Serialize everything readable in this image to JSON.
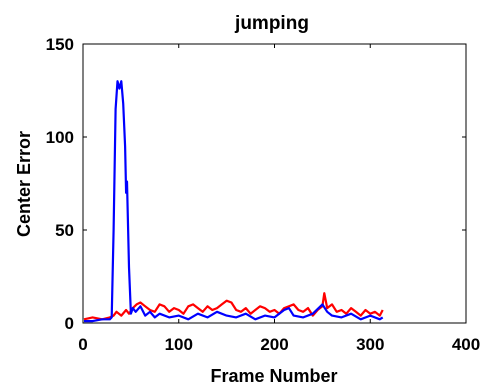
{
  "chart_data": {
    "type": "line",
    "title": "jumping",
    "xlabel": "Frame Number",
    "ylabel": "Center Error",
    "xlim": [
      0,
      400
    ],
    "ylim": [
      0,
      150
    ],
    "xticks": [
      0,
      100,
      200,
      300,
      400
    ],
    "yticks": [
      0,
      50,
      100,
      150
    ],
    "grid": false,
    "series": [
      {
        "color": "#ff0000",
        "x": [
          1,
          10,
          20,
          28,
          32,
          35,
          40,
          45,
          48,
          52,
          56,
          60,
          65,
          70,
          75,
          80,
          85,
          90,
          95,
          100,
          105,
          110,
          115,
          120,
          125,
          130,
          135,
          140,
          145,
          150,
          155,
          160,
          165,
          170,
          175,
          180,
          185,
          190,
          195,
          200,
          205,
          210,
          215,
          220,
          225,
          230,
          235,
          240,
          245,
          250,
          252,
          255,
          260,
          265,
          270,
          275,
          280,
          285,
          290,
          295,
          300,
          305,
          310,
          313
        ],
        "y": [
          2,
          3,
          2,
          3,
          4,
          6,
          4,
          7,
          5,
          8,
          10,
          11,
          9,
          7,
          6,
          10,
          9,
          6,
          8,
          7,
          5,
          9,
          10,
          8,
          6,
          9,
          7,
          8,
          10,
          12,
          11,
          7,
          6,
          8,
          5,
          7,
          9,
          8,
          6,
          7,
          5,
          8,
          9,
          10,
          7,
          6,
          8,
          4,
          7,
          9,
          16,
          8,
          10,
          6,
          7,
          5,
          8,
          6,
          4,
          7,
          5,
          6,
          4,
          7
        ]
      },
      {
        "color": "#0000ff",
        "x": [
          1,
          10,
          20,
          28,
          30,
          32,
          34,
          36,
          38,
          40,
          42,
          44,
          45,
          46,
          48,
          50,
          52,
          55,
          60,
          65,
          70,
          75,
          80,
          90,
          100,
          110,
          120,
          130,
          140,
          150,
          160,
          170,
          180,
          190,
          200,
          210,
          215,
          220,
          230,
          240,
          250,
          255,
          260,
          270,
          280,
          290,
          300,
          310,
          313
        ],
        "y": [
          1,
          1,
          2,
          2,
          3,
          50,
          115,
          130,
          126,
          130,
          118,
          95,
          70,
          76,
          30,
          5,
          8,
          6,
          9,
          4,
          6,
          3,
          5,
          3,
          4,
          2,
          5,
          3,
          6,
          4,
          3,
          5,
          2,
          4,
          3,
          7,
          8,
          4,
          3,
          5,
          10,
          6,
          4,
          3,
          5,
          2,
          4,
          2,
          3
        ]
      }
    ]
  }
}
